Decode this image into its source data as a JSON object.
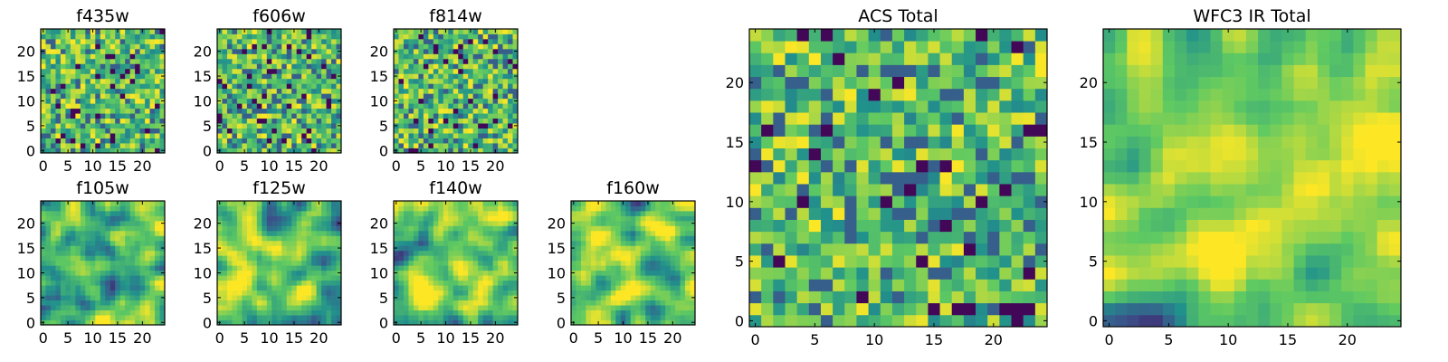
{
  "colormap": "viridis",
  "colormap_stops": [
    "#440154",
    "#3b528b",
    "#21918c",
    "#5ec962",
    "#fde725"
  ],
  "chart_data": [
    {
      "type": "heatmap",
      "title": "f435w",
      "grid_size": 25,
      "xticks": [
        0,
        5,
        10,
        15,
        20
      ],
      "yticks": [
        0,
        5,
        10,
        15,
        20
      ],
      "xlim": [
        0,
        25
      ],
      "ylim": [
        0,
        25
      ],
      "texture": "noise",
      "seed": 11
    },
    {
      "type": "heatmap",
      "title": "f606w",
      "grid_size": 25,
      "xticks": [
        0,
        5,
        10,
        15,
        20
      ],
      "yticks": [
        0,
        5,
        10,
        15,
        20
      ],
      "xlim": [
        0,
        25
      ],
      "ylim": [
        0,
        25
      ],
      "texture": "noise",
      "seed": 23
    },
    {
      "type": "heatmap",
      "title": "f814w",
      "grid_size": 25,
      "xticks": [
        0,
        5,
        10,
        15,
        20
      ],
      "yticks": [
        0,
        5,
        10,
        15,
        20
      ],
      "xlim": [
        0,
        25
      ],
      "ylim": [
        0,
        25
      ],
      "texture": "noise",
      "seed": 37
    },
    {
      "type": "heatmap",
      "title": "f105w",
      "grid_size": 25,
      "xticks": [
        0,
        5,
        10,
        15,
        20
      ],
      "yticks": [
        0,
        5,
        10,
        15,
        20
      ],
      "xlim": [
        0,
        25
      ],
      "ylim": [
        0,
        25
      ],
      "texture": "smooth",
      "seed": 41
    },
    {
      "type": "heatmap",
      "title": "f125w",
      "grid_size": 25,
      "xticks": [
        0,
        5,
        10,
        15,
        20
      ],
      "yticks": [
        0,
        5,
        10,
        15,
        20
      ],
      "xlim": [
        0,
        25
      ],
      "ylim": [
        0,
        25
      ],
      "texture": "smooth",
      "seed": 53
    },
    {
      "type": "heatmap",
      "title": "f140w",
      "grid_size": 25,
      "xticks": [
        0,
        5,
        10,
        15,
        20
      ],
      "yticks": [
        0,
        5,
        10,
        15,
        20
      ],
      "xlim": [
        0,
        25
      ],
      "ylim": [
        0,
        25
      ],
      "texture": "smooth",
      "seed": 67
    },
    {
      "type": "heatmap",
      "title": "f160w",
      "grid_size": 25,
      "xticks": [
        0,
        5,
        10,
        15,
        20
      ],
      "yticks": [
        0,
        5,
        10,
        15,
        20
      ],
      "xlim": [
        0,
        25
      ],
      "ylim": [
        0,
        25
      ],
      "texture": "smooth",
      "seed": 71
    },
    {
      "type": "heatmap",
      "title": "ACS Total",
      "grid_size": 25,
      "xticks": [
        0,
        5,
        10,
        15,
        20
      ],
      "yticks": [
        0,
        5,
        10,
        15,
        20
      ],
      "xlim": [
        0,
        25
      ],
      "ylim": [
        0,
        25
      ],
      "texture": "noise",
      "seed": 83
    },
    {
      "type": "heatmap",
      "title": "WFC3 IR Total",
      "grid_size": 25,
      "xticks": [
        0,
        5,
        10,
        15,
        20
      ],
      "yticks": [
        0,
        5,
        10,
        15,
        20
      ],
      "xlim": [
        0,
        25
      ],
      "ylim": [
        0,
        25
      ],
      "texture": "smooth",
      "seed": 97
    }
  ]
}
